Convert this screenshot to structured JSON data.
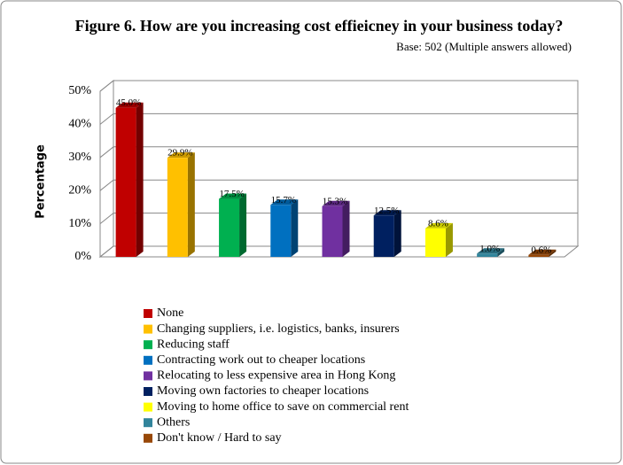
{
  "chart_data": {
    "type": "bar3d",
    "title": "Figure 6.  How are you increasing cost effieicney in your business today?",
    "subtitle": "Base: 502 (Multiple answers allowed)",
    "y_label": "Percentage",
    "categories": [
      "None",
      "Changing suppliers, i.e. logistics, banks, insurers",
      "Reducing staff",
      "Contracting work out to cheaper locations",
      "Relocating to less expensive area in Hong Kong",
      "Moving own factories to cheaper locations",
      "Moving to home office to save on commercial rent",
      "Others",
      "Don't know / Hard to say"
    ],
    "values": [
      45.0,
      29.9,
      17.5,
      15.7,
      15.3,
      12.5,
      8.6,
      1.0,
      0.6
    ],
    "value_labels": [
      "45.0%",
      "29.9%",
      "17.5%",
      "15.7%",
      "15.3%",
      "12.5%",
      "8.6%",
      "1.0%",
      "0.6%"
    ],
    "colors": [
      "#c00000",
      "#ffc000",
      "#00b050",
      "#0070c0",
      "#7030a0",
      "#002060",
      "#ffff00",
      "#31849b",
      "#984807"
    ],
    "ylim": [
      0,
      50
    ],
    "yticks": [
      {
        "value": 0,
        "label": "0%"
      },
      {
        "value": 10,
        "label": "10%"
      },
      {
        "value": 20,
        "label": "20%"
      },
      {
        "value": 30,
        "label": "30%"
      },
      {
        "value": 40,
        "label": "40%"
      },
      {
        "value": 50,
        "label": "50%"
      }
    ],
    "grid": true
  }
}
